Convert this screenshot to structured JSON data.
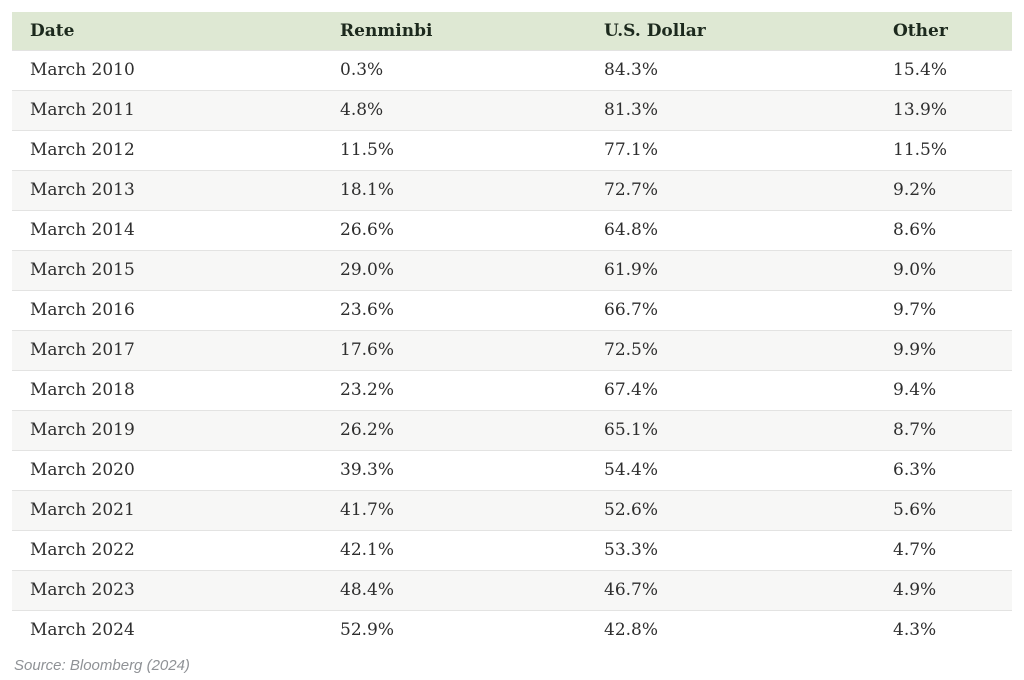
{
  "table": {
    "columns": [
      "Date",
      "Renminbi",
      "U.S. Dollar",
      "Other"
    ],
    "rows": [
      {
        "date": "March 2010",
        "renminbi": "0.3%",
        "usd": "84.3%",
        "other": "15.4%"
      },
      {
        "date": "March 2011",
        "renminbi": "4.8%",
        "usd": "81.3%",
        "other": "13.9%"
      },
      {
        "date": "March 2012",
        "renminbi": "11.5%",
        "usd": "77.1%",
        "other": "11.5%"
      },
      {
        "date": "March 2013",
        "renminbi": "18.1%",
        "usd": "72.7%",
        "other": "9.2%"
      },
      {
        "date": "March 2014",
        "renminbi": "26.6%",
        "usd": "64.8%",
        "other": "8.6%"
      },
      {
        "date": "March 2015",
        "renminbi": "29.0%",
        "usd": "61.9%",
        "other": "9.0%"
      },
      {
        "date": "March 2016",
        "renminbi": "23.6%",
        "usd": "66.7%",
        "other": "9.7%"
      },
      {
        "date": "March 2017",
        "renminbi": "17.6%",
        "usd": "72.5%",
        "other": "9.9%"
      },
      {
        "date": "March 2018",
        "renminbi": "23.2%",
        "usd": "67.4%",
        "other": "9.4%"
      },
      {
        "date": "March 2019",
        "renminbi": "26.2%",
        "usd": "65.1%",
        "other": "8.7%"
      },
      {
        "date": "March 2020",
        "renminbi": "39.3%",
        "usd": "54.4%",
        "other": "6.3%"
      },
      {
        "date": "March 2021",
        "renminbi": "41.7%",
        "usd": "52.6%",
        "other": "5.6%"
      },
      {
        "date": "March 2022",
        "renminbi": "42.1%",
        "usd": "53.3%",
        "other": "4.7%"
      },
      {
        "date": "March 2023",
        "renminbi": "48.4%",
        "usd": "46.7%",
        "other": "4.9%"
      },
      {
        "date": "March 2024",
        "renminbi": "52.9%",
        "usd": "42.8%",
        "other": "4.3%"
      }
    ]
  },
  "source": "Source: Bloomberg (2024)",
  "colors": {
    "header_bg": "#dee8d3",
    "header_text": "#1c291d",
    "body_text": "#2e2e2e",
    "row_alt_bg": "#f7f7f6",
    "row_border": "#e3e3e2",
    "source_text": "#8f9296",
    "bottom_bar": "#2d5c66"
  },
  "chart_data": {
    "type": "table",
    "columns": [
      "Date",
      "Renminbi",
      "U.S. Dollar",
      "Other"
    ],
    "x": [
      "March 2010",
      "March 2011",
      "March 2012",
      "March 2013",
      "March 2014",
      "March 2015",
      "March 2016",
      "March 2017",
      "March 2018",
      "March 2019",
      "March 2020",
      "March 2021",
      "March 2022",
      "March 2023",
      "March 2024"
    ],
    "series": [
      {
        "name": "Renminbi",
        "values": [
          0.3,
          4.8,
          11.5,
          18.1,
          26.6,
          29.0,
          23.6,
          17.6,
          23.2,
          26.2,
          39.3,
          41.7,
          42.1,
          48.4,
          52.9
        ]
      },
      {
        "name": "U.S. Dollar",
        "values": [
          84.3,
          81.3,
          77.1,
          72.7,
          64.8,
          61.9,
          66.7,
          72.5,
          67.4,
          65.1,
          54.4,
          52.6,
          53.3,
          46.7,
          42.8
        ]
      },
      {
        "name": "Other",
        "values": [
          15.4,
          13.9,
          11.5,
          9.2,
          8.6,
          9.0,
          9.7,
          9.9,
          9.4,
          8.7,
          6.3,
          5.6,
          4.7,
          4.9,
          4.3
        ]
      }
    ],
    "unit": "%",
    "source": "Source: Bloomberg (2024)"
  }
}
